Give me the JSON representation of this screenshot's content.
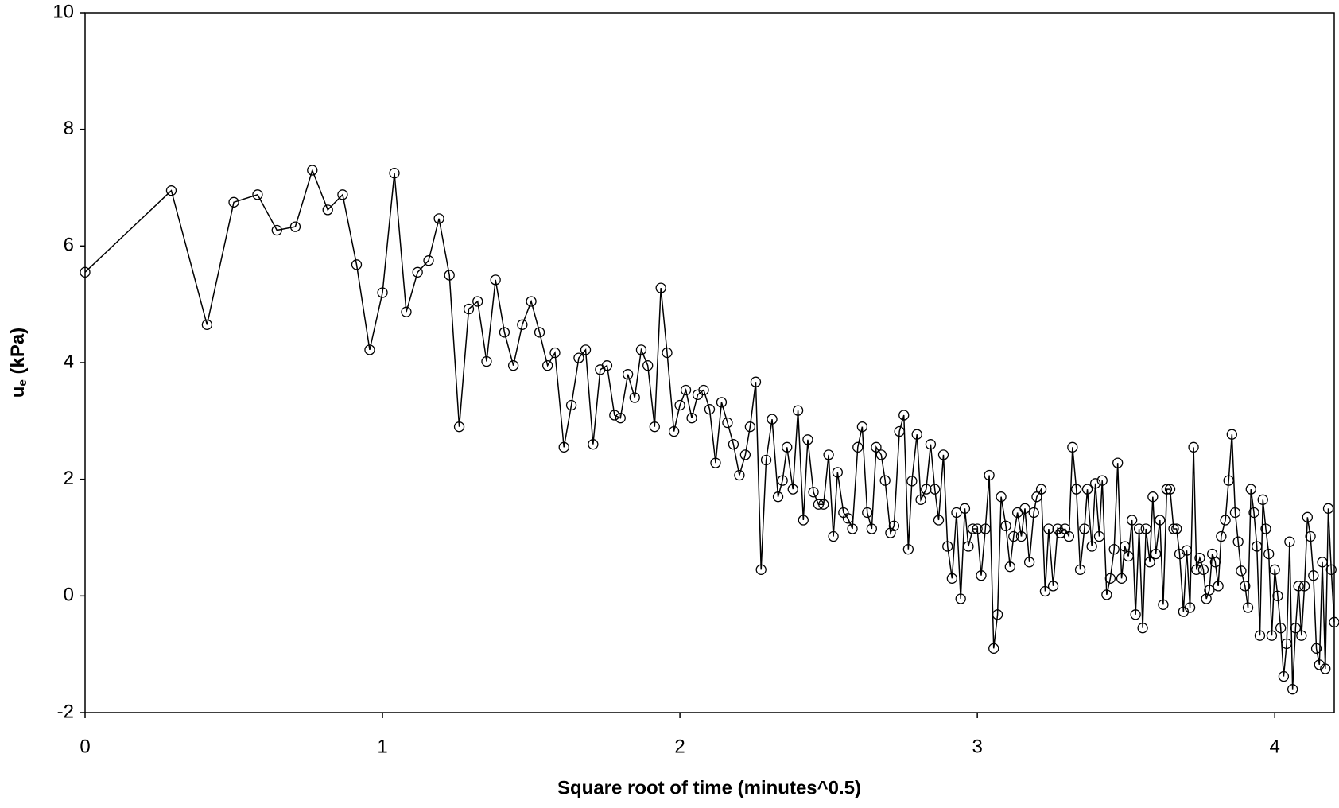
{
  "chart_data": {
    "type": "line",
    "xlabel": "Square root of time (minutes^0.5)",
    "ylabel": [
      "u",
      "e",
      " (kPa)"
    ],
    "xlim": [
      0,
      4.2
    ],
    "xticks": [
      0,
      1,
      2,
      3,
      4
    ],
    "ylim": [
      -2,
      10
    ],
    "yticks": [
      -2,
      0,
      2,
      4,
      6,
      8,
      10
    ],
    "grid": false,
    "series": [
      {
        "color": "#000000",
        "marker": "circle",
        "x": [
          0,
          0.29,
          0.41,
          0.5,
          0.58,
          0.645,
          0.707,
          0.764,
          0.816,
          0.866,
          0.913,
          0.957,
          1.0,
          1.04,
          1.08,
          1.118,
          1.155,
          1.19,
          1.225,
          1.258,
          1.29,
          1.32,
          1.35,
          1.38,
          1.41,
          1.44,
          1.47,
          1.5,
          1.528,
          1.555,
          1.58,
          1.61,
          1.635,
          1.66,
          1.683,
          1.708,
          1.732,
          1.755,
          1.78,
          1.8,
          1.825,
          1.848,
          1.87,
          1.892,
          1.915,
          1.936,
          1.957,
          1.98,
          2.0,
          2.02,
          2.04,
          2.06,
          2.08,
          2.1,
          2.12,
          2.14,
          2.16,
          2.18,
          2.2,
          2.22,
          2.236,
          2.255,
          2.273,
          2.29,
          2.31,
          2.33,
          2.345,
          2.36,
          2.38,
          2.397,
          2.415,
          2.43,
          2.449,
          2.466,
          2.483,
          2.5,
          2.516,
          2.53,
          2.55,
          2.565,
          2.58,
          2.598,
          2.613,
          2.63,
          2.645,
          2.66,
          2.677,
          2.69,
          2.708,
          2.72,
          2.738,
          2.753,
          2.768,
          2.78,
          2.797,
          2.81,
          2.828,
          2.843,
          2.857,
          2.87,
          2.886,
          2.9,
          2.915,
          2.93,
          2.944,
          2.958,
          2.97,
          2.985,
          3.0,
          3.013,
          3.027,
          3.04,
          3.055,
          3.068,
          3.08,
          3.096,
          3.11,
          3.122,
          3.135,
          3.148,
          3.16,
          3.175,
          3.19,
          3.2,
          3.215,
          3.228,
          3.24,
          3.255,
          3.27,
          3.28,
          3.295,
          3.308,
          3.32,
          3.333,
          3.346,
          3.36,
          3.37,
          3.385,
          3.397,
          3.41,
          3.42,
          3.435,
          3.447,
          3.46,
          3.472,
          3.485,
          3.496,
          3.508,
          3.52,
          3.532,
          3.544,
          3.556,
          3.567,
          3.58,
          3.59,
          3.6,
          3.614,
          3.625,
          3.637,
          3.648,
          3.66,
          3.67,
          3.68,
          3.693,
          3.704,
          3.715,
          3.727,
          3.737,
          3.748,
          3.76,
          3.77,
          3.78,
          3.79,
          3.8,
          3.81,
          3.82,
          3.834,
          3.845,
          3.856,
          3.867,
          3.877,
          3.887,
          3.9,
          3.91,
          3.92,
          3.93,
          3.94,
          3.95,
          3.96,
          3.97,
          3.98,
          3.99,
          4.0,
          4.01,
          4.02,
          4.03,
          4.04,
          4.05,
          4.06,
          4.07,
          4.08,
          4.09,
          4.1,
          4.11,
          4.12,
          4.13,
          4.14,
          4.15,
          4.16,
          4.17,
          4.18,
          4.19,
          4.2
        ],
        "values": [
          5.55,
          6.95,
          4.65,
          6.75,
          6.88,
          6.27,
          6.33,
          7.3,
          6.62,
          6.88,
          5.68,
          4.22,
          5.2,
          7.25,
          4.87,
          5.55,
          5.75,
          6.47,
          5.5,
          2.9,
          4.92,
          5.05,
          4.02,
          5.42,
          4.52,
          3.95,
          4.65,
          5.05,
          4.52,
          3.95,
          4.17,
          2.55,
          3.27,
          4.08,
          4.22,
          2.6,
          3.88,
          3.95,
          3.1,
          3.05,
          3.8,
          3.4,
          4.22,
          3.95,
          2.9,
          5.28,
          4.17,
          2.82,
          3.27,
          3.53,
          3.05,
          3.45,
          3.53,
          3.2,
          2.28,
          3.32,
          2.97,
          2.6,
          2.07,
          2.42,
          2.9,
          3.67,
          0.45,
          2.33,
          3.03,
          1.7,
          1.98,
          2.55,
          1.83,
          3.18,
          1.3,
          2.68,
          1.78,
          1.57,
          1.57,
          2.42,
          1.02,
          2.12,
          1.43,
          1.33,
          1.15,
          2.55,
          2.9,
          1.43,
          1.15,
          2.55,
          2.42,
          1.98,
          1.08,
          1.2,
          2.82,
          3.1,
          0.8,
          1.97,
          2.77,
          1.65,
          1.83,
          2.6,
          1.83,
          1.3,
          2.42,
          0.85,
          0.3,
          1.43,
          -0.05,
          1.5,
          0.85,
          1.15,
          1.15,
          0.35,
          1.15,
          2.07,
          -0.9,
          -0.32,
          1.7,
          1.2,
          0.5,
          1.02,
          1.43,
          1.02,
          1.5,
          0.58,
          1.43,
          1.7,
          1.83,
          0.08,
          1.15,
          0.17,
          1.15,
          1.08,
          1.15,
          1.02,
          2.55,
          1.83,
          0.45,
          1.15,
          1.83,
          0.85,
          1.93,
          1.02,
          1.98,
          0.02,
          0.3,
          0.8,
          2.28,
          0.3,
          0.85,
          0.68,
          1.3,
          -0.32,
          1.15,
          -0.55,
          1.15,
          0.58,
          1.7,
          0.72,
          1.3,
          -0.15,
          1.83,
          1.83,
          1.15,
          1.15,
          0.72,
          -0.27,
          0.78,
          -0.2,
          2.55,
          0.45,
          0.65,
          0.45,
          -0.05,
          0.1,
          0.72,
          0.58,
          0.17,
          1.02,
          1.3,
          1.98,
          2.77,
          1.43,
          0.93,
          0.43,
          0.17,
          -0.2,
          1.83,
          1.43,
          0.85,
          -0.68,
          1.65,
          1.15,
          0.72,
          -0.68,
          0.45,
          0.0,
          -0.55,
          -1.38,
          -0.82,
          0.93,
          -1.6,
          -0.55,
          0.17,
          -0.68,
          0.17,
          1.35,
          1.02,
          0.35,
          -0.9,
          -1.18,
          0.58,
          -1.25,
          1.5,
          0.45,
          -0.45
        ]
      }
    ]
  }
}
